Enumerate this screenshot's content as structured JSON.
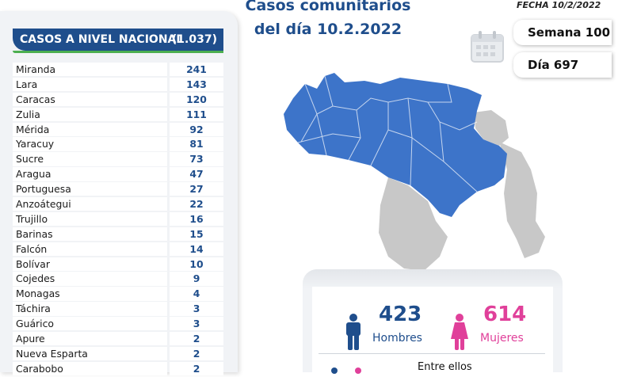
{
  "header": {
    "title_line1": "Casos comunitarios",
    "title_line2": "del día 10.2.2022",
    "fecha": "FECHA 10/2/2022",
    "semana": "Semana 100",
    "dia": "Día 697"
  },
  "table": {
    "title": "CASOS A NIVEL NACIONAL",
    "total": "(1.037)",
    "rows": [
      {
        "state": "Miranda",
        "count": "241"
      },
      {
        "state": "Lara",
        "count": "143"
      },
      {
        "state": "Caracas",
        "count": "120"
      },
      {
        "state": "Zulia",
        "count": "111"
      },
      {
        "state": "Mérida",
        "count": "92"
      },
      {
        "state": "Yaracuy",
        "count": "81"
      },
      {
        "state": "Sucre",
        "count": "73"
      },
      {
        "state": "Aragua",
        "count": "47"
      },
      {
        "state": "Portuguesa",
        "count": "27"
      },
      {
        "state": "Anzoátegui",
        "count": "22"
      },
      {
        "state": "Trujillo",
        "count": "16"
      },
      {
        "state": "Barinas",
        "count": "15"
      },
      {
        "state": "Falcón",
        "count": "14"
      },
      {
        "state": "Bolívar",
        "count": "10"
      },
      {
        "state": "Cojedes",
        "count": "9"
      },
      {
        "state": "Monagas",
        "count": "4"
      },
      {
        "state": "Táchira",
        "count": "3"
      },
      {
        "state": "Guárico",
        "count": "3"
      },
      {
        "state": "Apure",
        "count": "2"
      },
      {
        "state": "Nueva Esparta",
        "count": "2"
      },
      {
        "state": "Carabobo",
        "count": "2"
      }
    ]
  },
  "gender": {
    "hombres_count": "423",
    "hombres_label": "Hombres",
    "mujeres_count": "614",
    "mujeres_label": "Mujeres",
    "entre_ellos": "Entre ellos"
  },
  "colors": {
    "primary_blue": "#1f4e8c",
    "map_blue": "#3d74c9",
    "map_gray": "#c8c8c8",
    "pink": "#e0409a",
    "green": "#4caf50"
  },
  "icons": {
    "calendar": "calendar-icon",
    "man": "man-icon",
    "woman": "woman-icon",
    "map": "venezuela-map"
  }
}
